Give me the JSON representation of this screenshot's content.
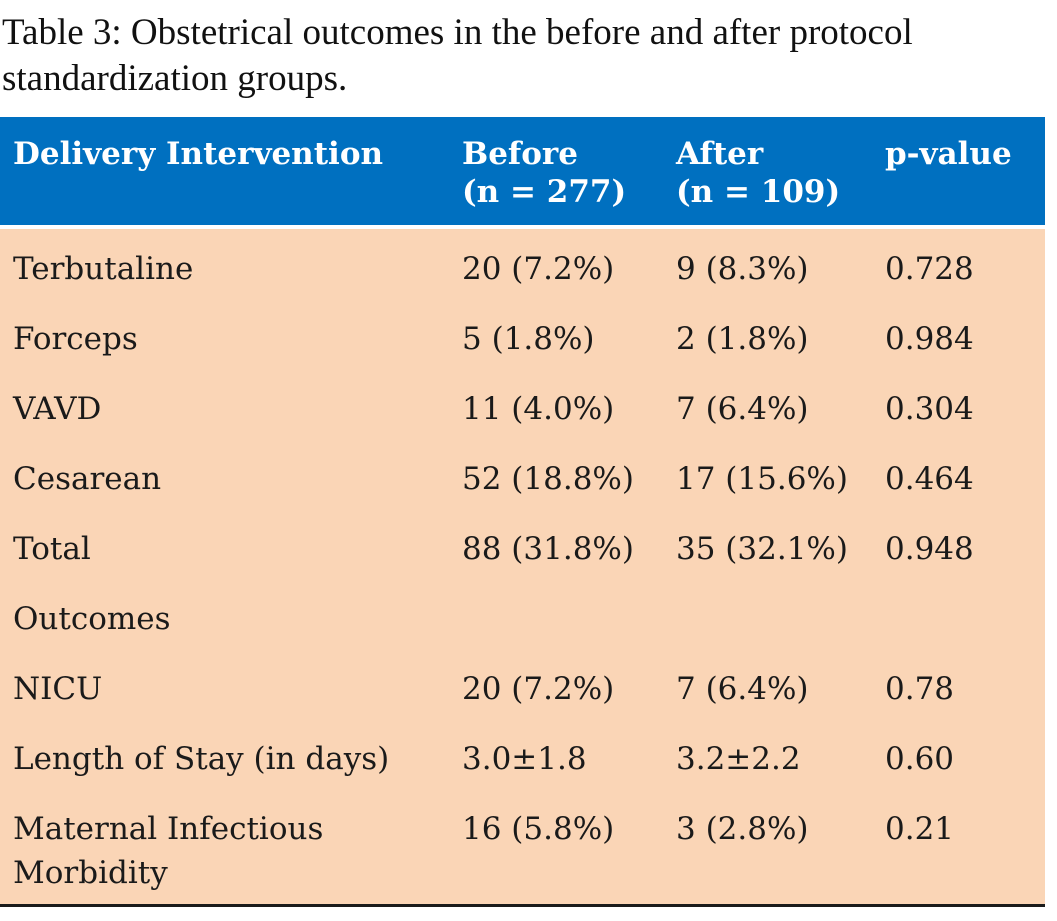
{
  "caption": "Table 3: Obstetrical outcomes in the before and after protocol standardization groups.",
  "colors": {
    "header_bg": "#0070c0",
    "body_bg": "#fad5b6",
    "header_text": "#ffffff"
  },
  "table": {
    "headers": [
      "Delivery Intervention",
      "Before\n(n = 277)",
      "After\n(n = 109)",
      "p-value"
    ],
    "rows": [
      [
        "Terbutaline",
        "20 (7.2%)",
        "9 (8.3%)",
        "0.728"
      ],
      [
        "Forceps",
        "5 (1.8%)",
        "2 (1.8%)",
        "0.984"
      ],
      [
        "VAVD",
        "11 (4.0%)",
        "7 (6.4%)",
        "0.304"
      ],
      [
        "Cesarean",
        "52 (18.8%)",
        "17 (15.6%)",
        "0.464"
      ],
      [
        "Total",
        "88 (31.8%)",
        "35 (32.1%)",
        "0.948"
      ],
      [
        "Outcomes",
        "",
        "",
        ""
      ],
      [
        "NICU",
        "20 (7.2%)",
        "7 (6.4%)",
        "0.78"
      ],
      [
        "Length of Stay (in days)",
        "3.0±1.8",
        "3.2±2.2",
        "0.60"
      ],
      [
        "Maternal Infectious Morbidity",
        "16 (5.8%)",
        "3 (2.8%)",
        "0.21"
      ]
    ]
  }
}
